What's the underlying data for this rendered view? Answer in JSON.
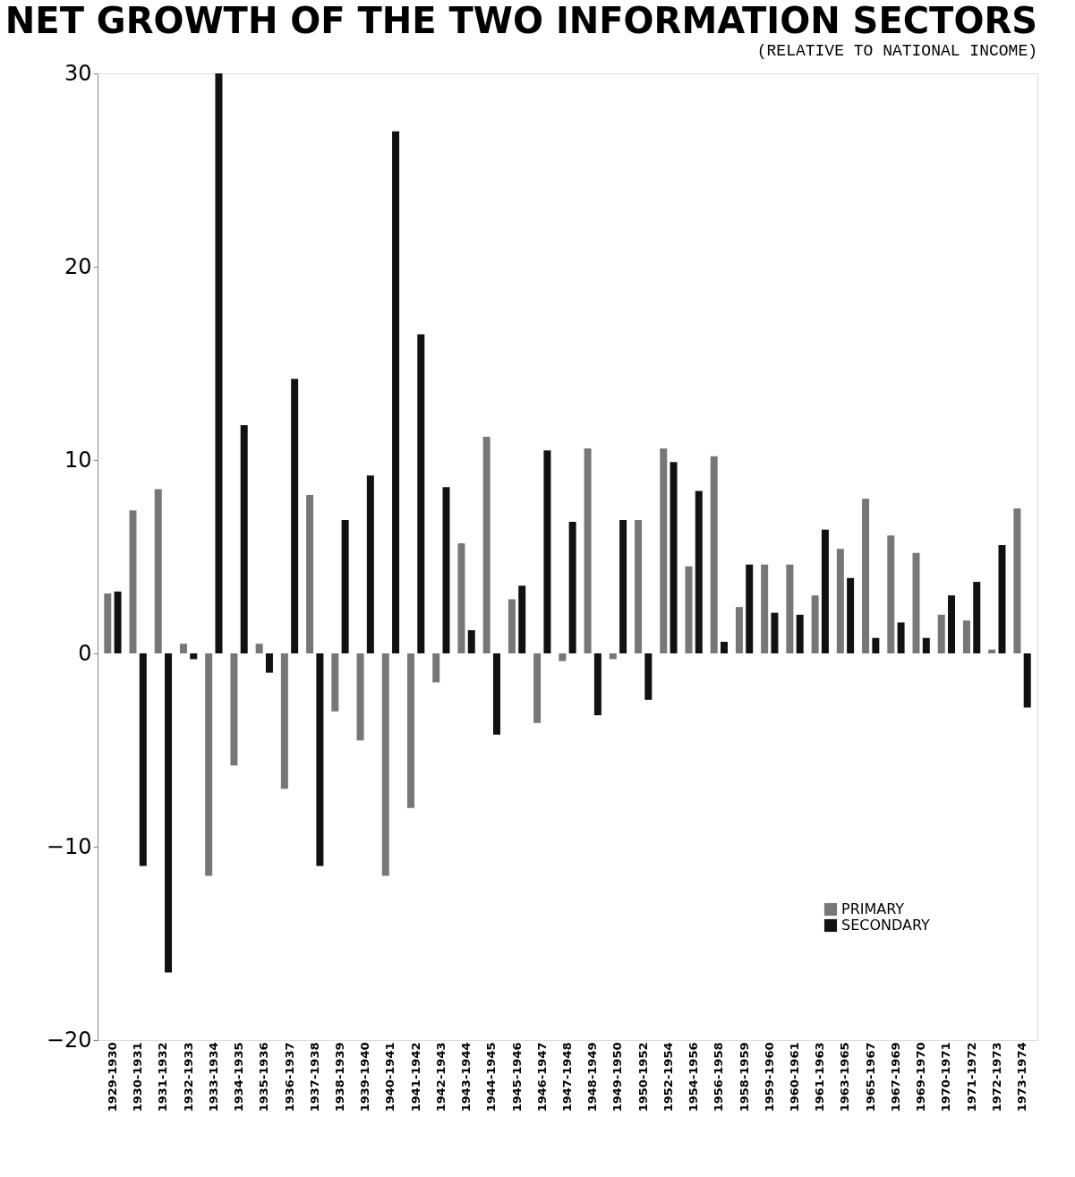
{
  "chart_data": {
    "type": "bar",
    "title": "NET GROWTH OF THE TWO INFORMATION SECTORS",
    "subtitle": "(RELATIVE TO NATIONAL INCOME)",
    "categories": [
      "1929-1930",
      "1930-1931",
      "1931-1932",
      "1932-1933",
      "1933-1934",
      "1934-1935",
      "1935-1936",
      "1936-1937",
      "1937-1938",
      "1938-1939",
      "1939-1940",
      "1940-1941",
      "1941-1942",
      "1942-1943",
      "1943-1944",
      "1944-1945",
      "1945-1946",
      "1946-1947",
      "1947-1948",
      "1948-1949",
      "1949-1950",
      "1950-1952",
      "1952-1954",
      "1954-1956",
      "1956-1958",
      "1958-1959",
      "1959-1960",
      "1960-1961",
      "1961-1963",
      "1963-1965",
      "1965-1967",
      "1967-1969",
      "1969-1970",
      "1970-1971",
      "1971-1972",
      "1972-1973",
      "1973-1974"
    ],
    "series": [
      {
        "name": "PRIMARY",
        "color": "#777777",
        "values": [
          3.1,
          7.4,
          8.5,
          0.5,
          -11.5,
          -5.8,
          0.5,
          -7,
          8.2,
          -3,
          -4.5,
          -11.5,
          -8,
          -1.5,
          5.7,
          11.2,
          2.8,
          -3.6,
          -0.4,
          10.6,
          -0.3,
          6.9,
          10.6,
          4.5,
          10.2,
          2.4,
          4.6,
          4.6,
          3.0,
          5.4,
          8.0,
          6.1,
          5.2,
          2.0,
          1.7,
          0.2,
          7.5
        ]
      },
      {
        "name": "SECONDARY",
        "color": "#111111",
        "values": [
          3.2,
          -11,
          -16.5,
          -0.3,
          30,
          11.8,
          -1,
          14.2,
          -11,
          6.9,
          9.2,
          27,
          16.5,
          8.6,
          1.2,
          -4.2,
          3.5,
          10.5,
          6.8,
          -3.2,
          6.9,
          -2.4,
          9.9,
          8.4,
          0.6,
          4.6,
          2.1,
          2.0,
          6.4,
          3.9,
          0.8,
          1.6,
          0.8,
          3.0,
          3.7,
          5.6,
          -2.8
        ]
      }
    ],
    "ylim": [
      -20,
      30
    ],
    "yticks": [
      -20,
      -10,
      0,
      10,
      20,
      30
    ],
    "grid": false,
    "legend": "bottom right"
  }
}
